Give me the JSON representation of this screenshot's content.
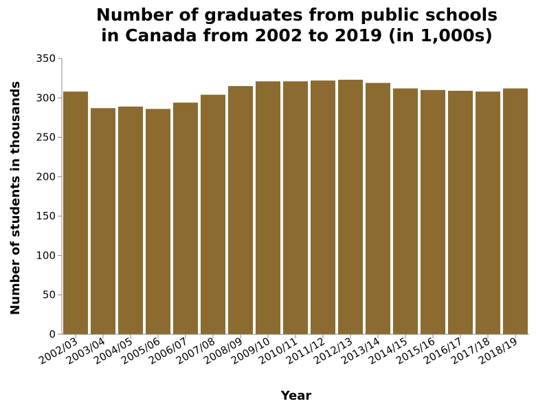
{
  "chart_data": {
    "type": "bar",
    "title_lines": [
      "Number of graduates from public schools",
      "in Canada from 2002 to 2019 (in 1,000s)"
    ],
    "xlabel": "Year",
    "ylabel": "Number of students in thousands",
    "categories": [
      "2002/03",
      "2003/04",
      "2004/05",
      "2005/06",
      "2006/07",
      "2007/08",
      "2008/09",
      "2009/10",
      "2010/11",
      "2011/12",
      "2012/13",
      "2013/14",
      "2014/15",
      "2015/16",
      "2016/17",
      "2017/18",
      "2018/19"
    ],
    "values": [
      308,
      287,
      289,
      286,
      294,
      304,
      315,
      321,
      321,
      322,
      323,
      319,
      312,
      310,
      309,
      308,
      312
    ],
    "ylim": [
      0,
      350
    ],
    "yticks": [
      0,
      50,
      100,
      150,
      200,
      250,
      300,
      350
    ],
    "bar_color": "#8b6b30",
    "grid": false,
    "legend": "none"
  }
}
